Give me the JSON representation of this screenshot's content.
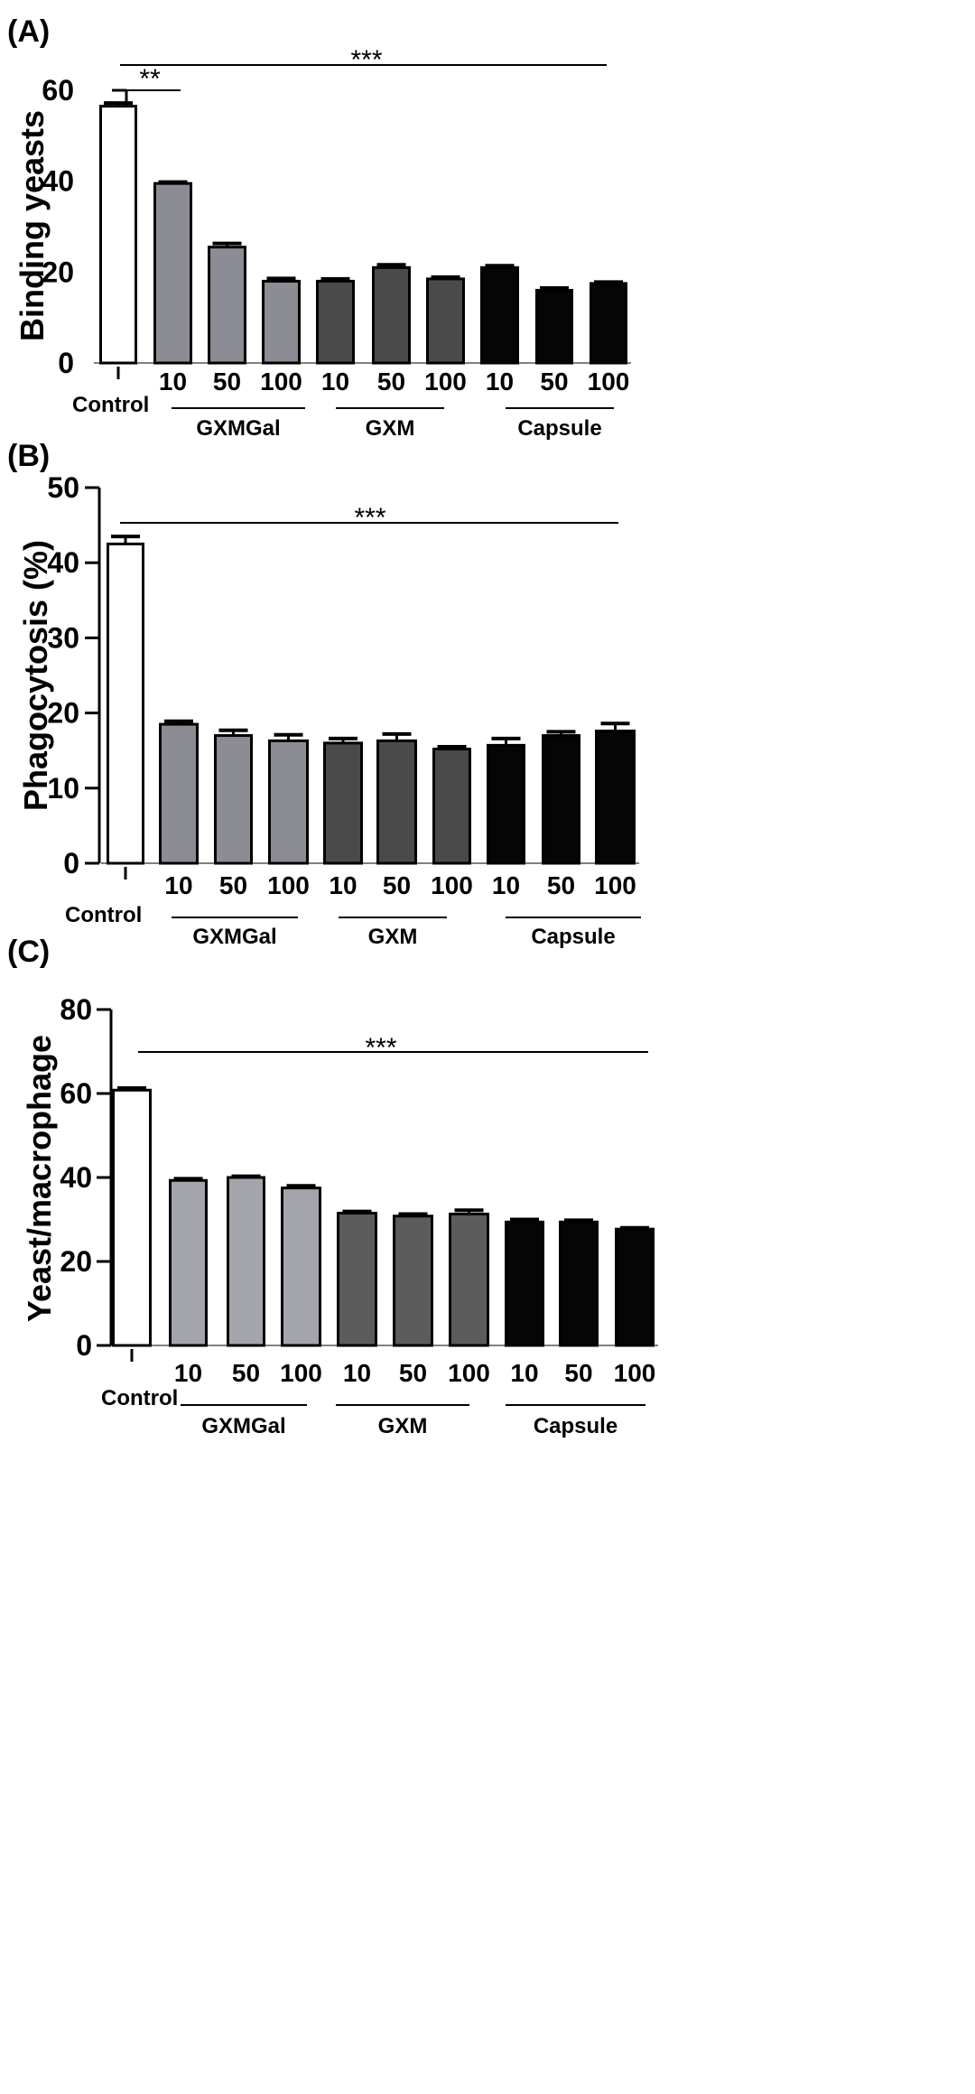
{
  "chart_data": [
    {
      "panel": "(A)",
      "type": "bar",
      "ylabel": "Binding yeasts",
      "ylim": [
        0,
        60
      ],
      "yticks": [
        "0",
        "20",
        "40",
        "60"
      ],
      "categories": [
        "Control",
        "10",
        "50",
        "100",
        "10",
        "50",
        "100",
        "10",
        "50",
        "100"
      ],
      "values": [
        56.5,
        39.5,
        25.5,
        18,
        18,
        21,
        18.5,
        21,
        16,
        17.5
      ],
      "errors": [
        0.7,
        0.3,
        0.8,
        0.6,
        0.5,
        0.6,
        0.4,
        0.4,
        0.5,
        0.3
      ],
      "bar_colors": [
        "#ffffff",
        "#8c8c94",
        "#8c8c94",
        "#8c8c94",
        "#4a4a4a",
        "#4a4a4a",
        "#4a4a4a",
        "#050505",
        "#050505",
        "#050505"
      ],
      "groups": [
        "GXMGal",
        "GXM",
        "Capsule"
      ],
      "significance": [
        "**",
        "***"
      ]
    },
    {
      "panel": "(B)",
      "type": "bar",
      "ylabel": "Phagocytosis (%)",
      "ylim": [
        0,
        50
      ],
      "yticks": [
        "0",
        "10",
        "20",
        "30",
        "40",
        "50"
      ],
      "categories": [
        "Control",
        "10",
        "50",
        "100",
        "10",
        "50",
        "100",
        "10",
        "50",
        "100"
      ],
      "values": [
        42.5,
        18.5,
        17,
        16.3,
        16,
        16.3,
        15.2,
        15.7,
        17,
        17.6
      ],
      "errors": [
        1,
        0.4,
        0.7,
        0.8,
        0.6,
        0.9,
        0.3,
        0.9,
        0.5,
        1
      ],
      "bar_colors": [
        "#ffffff",
        "#8c8c94",
        "#8c8c94",
        "#8c8c94",
        "#4a4a4a",
        "#4a4a4a",
        "#4a4a4a",
        "#050505",
        "#050505",
        "#050505"
      ],
      "groups": [
        "GXMGal",
        "GXM",
        "Capsule"
      ],
      "significance": [
        "***"
      ]
    },
    {
      "panel": "(C)",
      "type": "bar",
      "ylabel": "Yeast/macrophage",
      "ylim": [
        0,
        80
      ],
      "yticks": [
        "0",
        "20",
        "40",
        "60",
        "80"
      ],
      "categories": [
        "Control",
        "10",
        "50",
        "100",
        "10",
        "50",
        "100",
        "10",
        "50",
        "100"
      ],
      "values": [
        60.8,
        39.3,
        40,
        37.5,
        31.5,
        30.8,
        31.3,
        29.4,
        29.4,
        27.7
      ],
      "errors": [
        0.5,
        0.4,
        0.3,
        0.5,
        0.4,
        0.5,
        0.9,
        0.6,
        0.4,
        0.3
      ],
      "bar_colors": [
        "#ffffff",
        "#a4a4ac",
        "#a4a4ac",
        "#a4a4ac",
        "#5c5c5c",
        "#5c5c5c",
        "#5c5c5c",
        "#050505",
        "#050505",
        "#050505"
      ],
      "groups": [
        "GXMGal",
        "GXM",
        "Capsule"
      ],
      "significance": [
        "***"
      ]
    }
  ]
}
